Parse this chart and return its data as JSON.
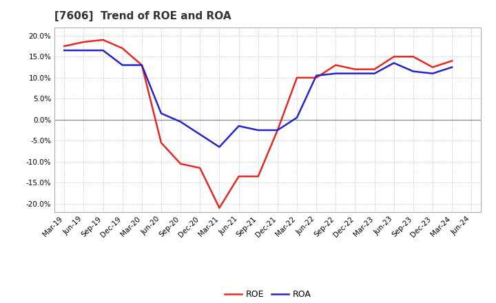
{
  "title": "[7606]  Trend of ROE and ROA",
  "labels": [
    "Mar-19",
    "Jun-19",
    "Sep-19",
    "Dec-19",
    "Mar-20",
    "Jun-20",
    "Sep-20",
    "Dec-20",
    "Mar-21",
    "Jun-21",
    "Sep-21",
    "Dec-21",
    "Mar-22",
    "Jun-22",
    "Sep-22",
    "Dec-22",
    "Mar-23",
    "Jun-23",
    "Sep-23",
    "Dec-23",
    "Mar-24",
    "Jun-24"
  ],
  "roe": [
    17.5,
    18.5,
    19.0,
    17.0,
    13.0,
    -5.5,
    -10.5,
    -11.5,
    -21.0,
    -13.5,
    -13.5,
    -2.5,
    10.0,
    10.0,
    13.0,
    12.0,
    12.0,
    15.0,
    15.0,
    12.5,
    14.0,
    null
  ],
  "roa": [
    16.5,
    16.5,
    16.5,
    13.0,
    13.0,
    1.5,
    -0.5,
    -3.5,
    -6.5,
    -1.5,
    -2.5,
    -2.5,
    0.5,
    10.5,
    11.0,
    11.0,
    11.0,
    13.5,
    11.5,
    11.0,
    12.5,
    null
  ],
  "roe_color": "#e8251f",
  "roa_color": "#2222cc",
  "ylim": [
    -22.0,
    22.0
  ],
  "yticks": [
    -20.0,
    -15.0,
    -10.0,
    -5.0,
    0.0,
    5.0,
    10.0,
    15.0,
    20.0
  ],
  "background_color": "#ffffff",
  "plot_bg_color": "#ffffff",
  "grid_color": "#b0b0b0",
  "zero_line_color": "#888888",
  "title_fontsize": 11,
  "tick_fontsize": 7.5,
  "legend_fontsize": 9
}
